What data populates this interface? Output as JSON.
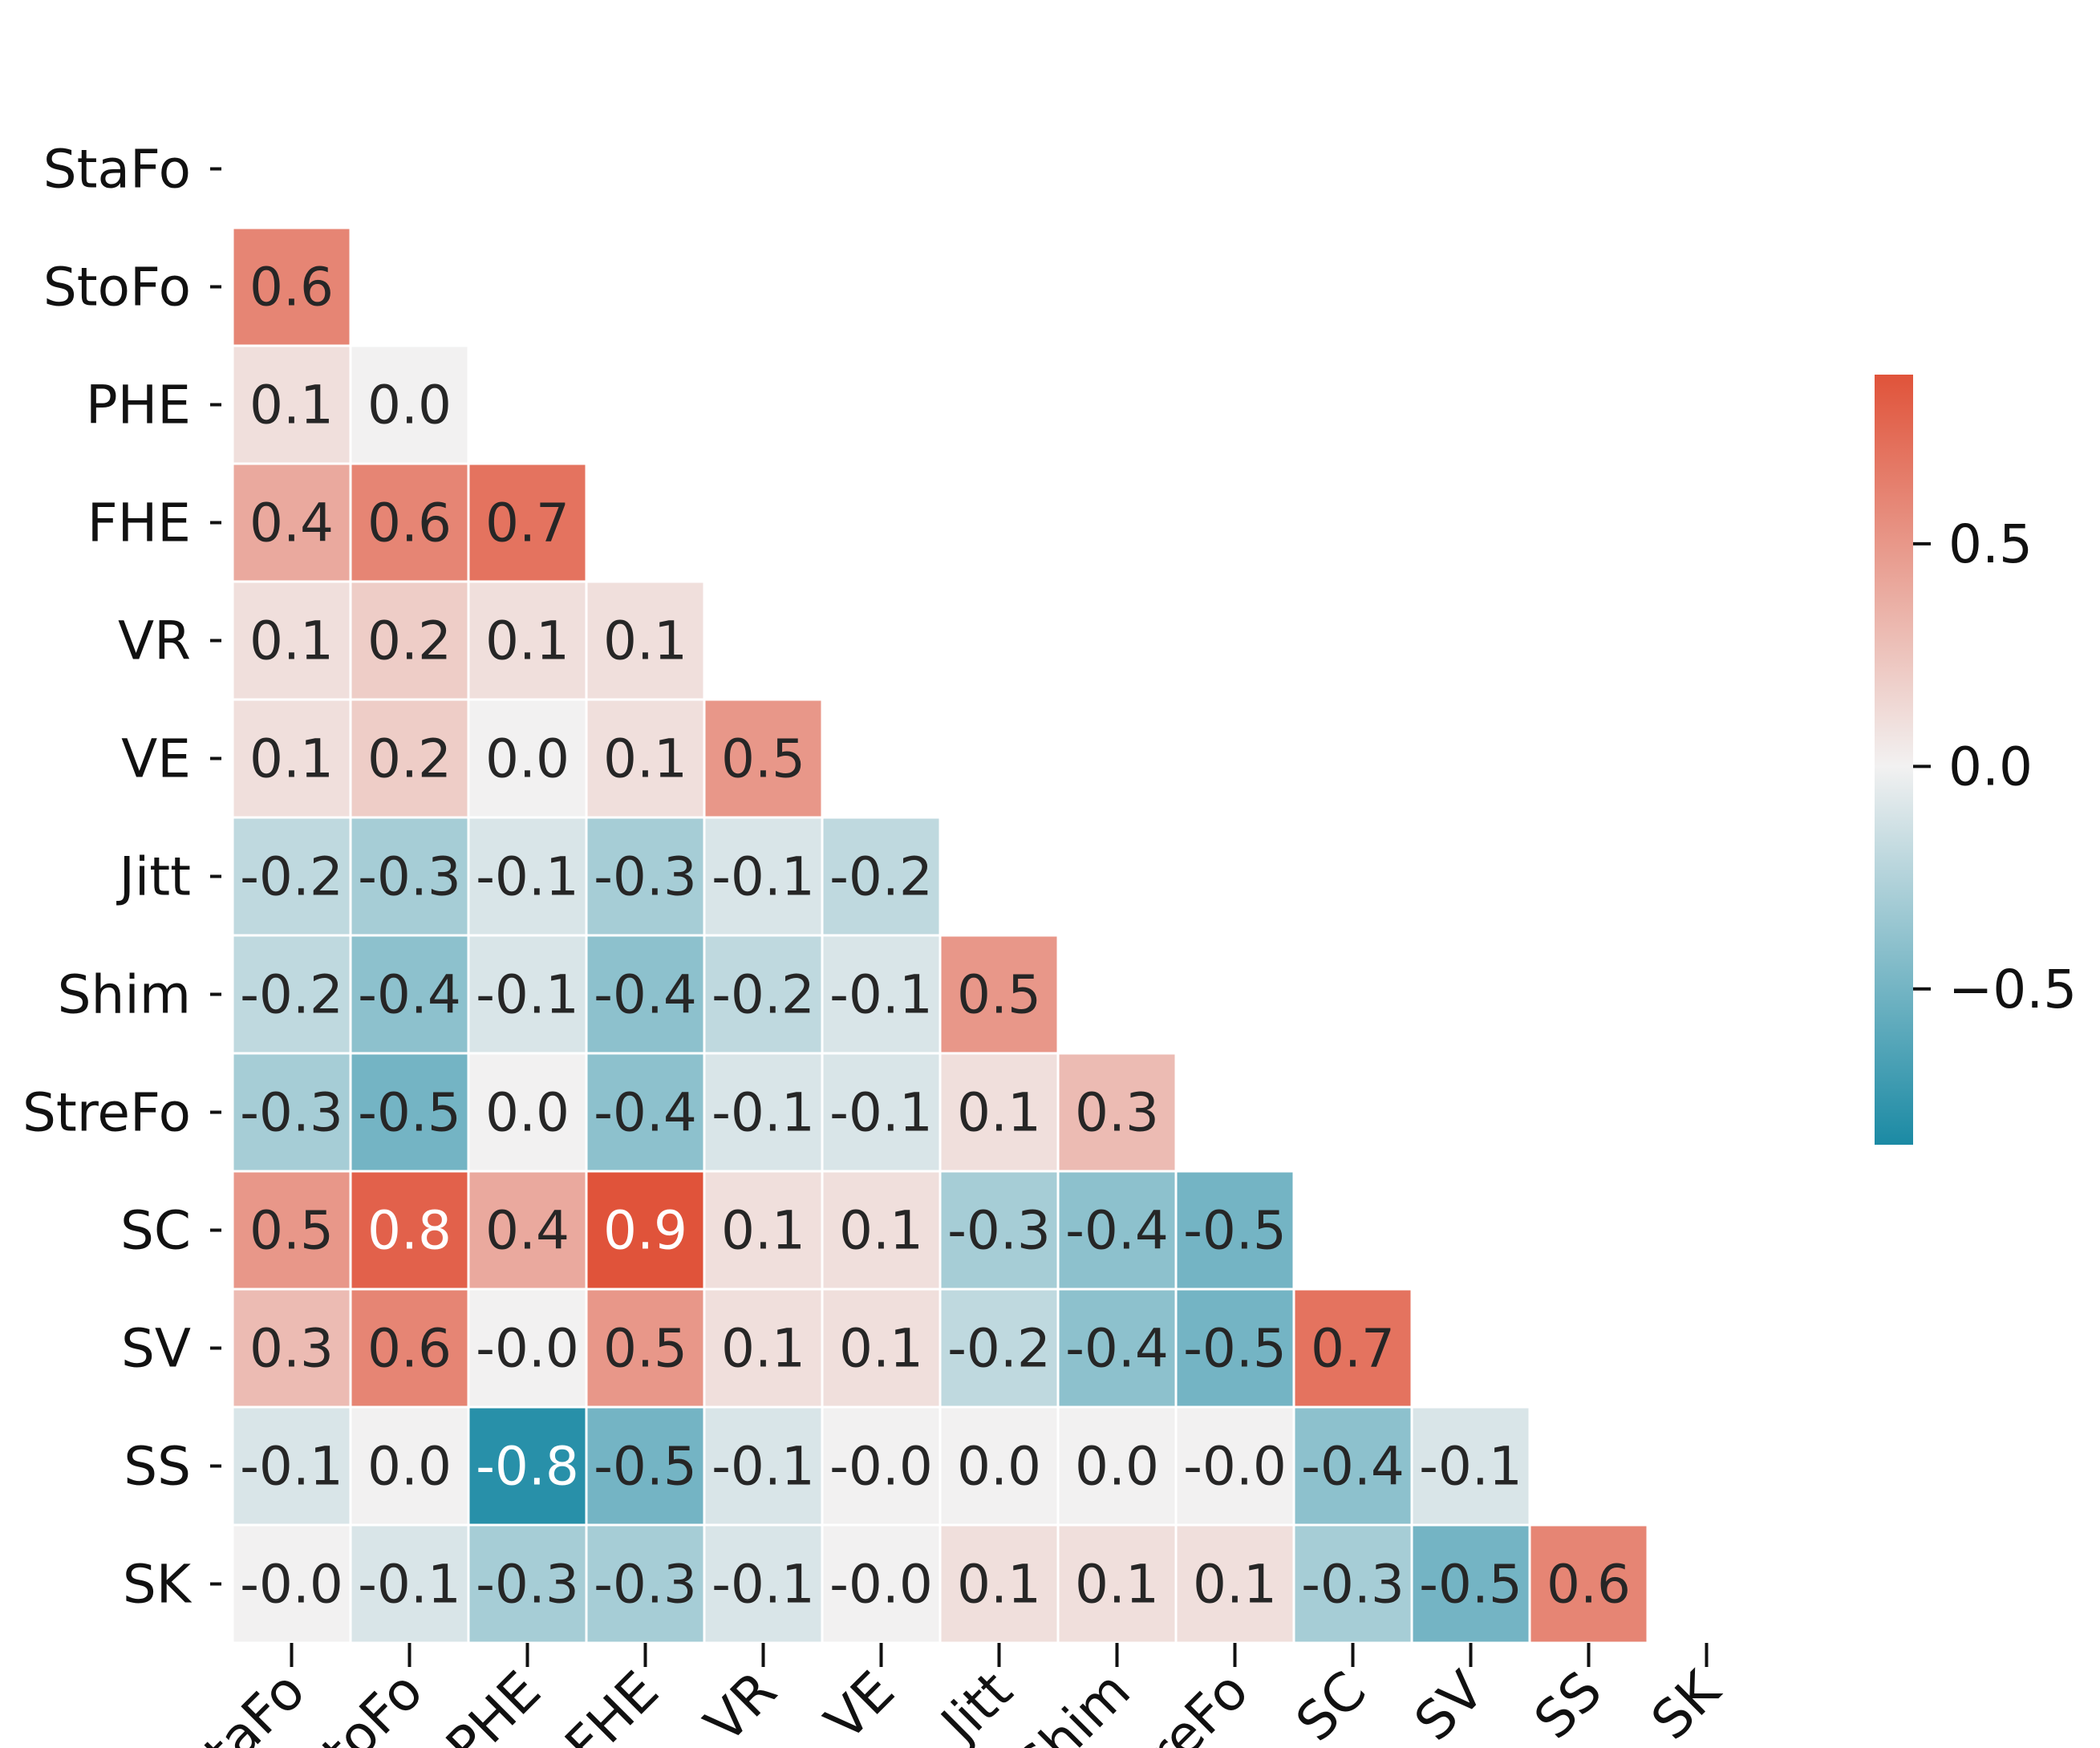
{
  "chart_data": {
    "type": "heatmap",
    "title": "",
    "xlabel": "",
    "ylabel": "",
    "layout": "lower-triangle",
    "labels": [
      "StaFo",
      "StoFo",
      "PHE",
      "FHE",
      "VR",
      "VE",
      "Jitt",
      "Shim",
      "StreFo",
      "SC",
      "SV",
      "SS",
      "SK"
    ],
    "values": [
      [],
      [
        "0.6"
      ],
      [
        "0.1",
        "0.0"
      ],
      [
        "0.4",
        "0.6",
        "0.7"
      ],
      [
        "0.1",
        "0.2",
        "0.1",
        "0.1"
      ],
      [
        "0.1",
        "0.2",
        "0.0",
        "0.1",
        "0.5"
      ],
      [
        "-0.2",
        "-0.3",
        "-0.1",
        "-0.3",
        "-0.1",
        "-0.2"
      ],
      [
        "-0.2",
        "-0.4",
        "-0.1",
        "-0.4",
        "-0.2",
        "-0.1",
        "0.5"
      ],
      [
        "-0.3",
        "-0.5",
        "0.0",
        "-0.4",
        "-0.1",
        "-0.1",
        "0.1",
        "0.3"
      ],
      [
        "0.5",
        "0.8",
        "0.4",
        "0.9",
        "0.1",
        "0.1",
        "-0.3",
        "-0.4",
        "-0.5"
      ],
      [
        "0.3",
        "0.6",
        "-0.0",
        "0.5",
        "0.1",
        "0.1",
        "-0.2",
        "-0.4",
        "-0.5",
        "0.7"
      ],
      [
        "-0.1",
        "0.0",
        "-0.8",
        "-0.5",
        "-0.1",
        "-0.0",
        "0.0",
        "0.0",
        "-0.0",
        "-0.4",
        "-0.1"
      ],
      [
        "-0.0",
        "-0.1",
        "-0.3",
        "-0.3",
        "-0.1",
        "-0.0",
        "0.1",
        "0.1",
        "0.1",
        "-0.3",
        "-0.5",
        "0.6"
      ]
    ],
    "colorbar": {
      "vmin": -0.85,
      "vmax": 0.88,
      "ticks": [
        0.5,
        0.0,
        -0.5
      ],
      "tick_labels": [
        "0.5",
        "0.0",
        "−0.5"
      ],
      "colors": {
        "negative": "#1b8aa4",
        "neutral": "#f2f1f1",
        "positive": "#e0533a"
      }
    }
  }
}
